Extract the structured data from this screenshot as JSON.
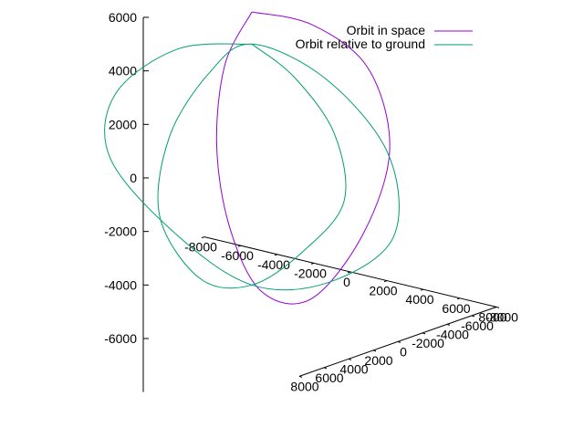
{
  "chart_data": {
    "type": "line",
    "projection": "3d",
    "title": "",
    "xlabel": "",
    "ylabel": "",
    "zlabel": "",
    "legend_position": "top-right",
    "grid": false,
    "series": [
      {
        "name": "Orbit in space",
        "color": "#9400d3",
        "x": [
          0,
          1920,
          3070,
          3030,
          1850,
          0,
          -1850,
          -3030,
          -3070,
          -1920,
          0
        ],
        "y": [
          0,
          -2070,
          -4900,
          -6700,
          -6300,
          -4800,
          -3500,
          -2700,
          -1700,
          -650,
          0
        ],
        "z": [
          6200,
          5700,
          3800,
          500,
          -2800,
          -5300,
          -5100,
          -2800,
          400,
          3800,
          6200
        ]
      },
      {
        "name": "Orbit relative to ground",
        "color": "#009e73",
        "x": [
          0,
          3200,
          6000,
          6400,
          3500,
          0,
          -3500,
          -6400,
          -6000,
          -3200,
          0,
          3200,
          6000,
          6400,
          3500,
          0,
          -3500,
          -6400,
          -6000,
          -3200,
          0
        ],
        "y": [
          0,
          1300,
          2200,
          2000,
          1000,
          0,
          -1000,
          -2000,
          -2200,
          -1300,
          0,
          -1300,
          -2200,
          -2000,
          -1000,
          0,
          1000,
          2000,
          2200,
          1300,
          0
        ],
        "z": [
          5000,
          4500,
          3000,
          500,
          -2000,
          -4000,
          -4500,
          -2800,
          200,
          3200,
          5000,
          4000,
          1500,
          -1500,
          -3500,
          -4000,
          -2500,
          0,
          2500,
          4500,
          5000
        ]
      }
    ],
    "z_ticks": [
      "6000",
      "4000",
      "2000",
      "0",
      "-2000",
      "-4000",
      "-6000"
    ],
    "z_tick_values": [
      6000,
      4000,
      2000,
      0,
      -2000,
      -4000,
      -6000
    ],
    "zlim": [
      -8000,
      6000
    ],
    "x_ticks": [
      "-8000",
      "-6000",
      "-4000",
      "-2000",
      "0",
      "2000",
      "4000",
      "6000",
      "8000"
    ],
    "x_tick_values": [
      -8000,
      -6000,
      -4000,
      -2000,
      0,
      2000,
      4000,
      6000,
      8000
    ],
    "xlim": [
      -8000,
      8000
    ],
    "y_ticks": [
      "-8000",
      "-6000",
      "-4000",
      "-2000",
      "0",
      "2000",
      "4000",
      "6000",
      "8000"
    ],
    "y_tick_values": [
      -8000,
      -6000,
      -4000,
      -2000,
      0,
      2000,
      4000,
      6000,
      8000
    ],
    "ylim": [
      -8000,
      8000
    ]
  }
}
